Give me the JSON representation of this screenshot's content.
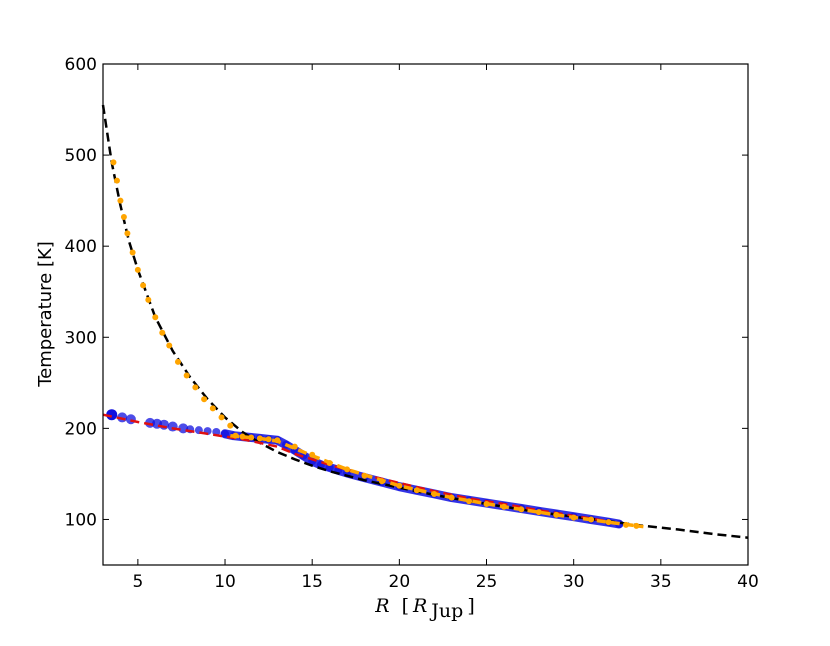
{
  "chart_data": {
    "type": "scatter",
    "title": "",
    "xlabel_main": "R",
    "xlabel_unit_base": "R",
    "xlabel_unit_sub": "Jup",
    "ylabel": "Temperature [K]",
    "xlim": [
      3,
      40
    ],
    "ylim": [
      50,
      600
    ],
    "xticks": [
      5,
      10,
      15,
      20,
      25,
      30,
      35,
      40
    ],
    "yticks": [
      100,
      200,
      300,
      400,
      500,
      600
    ],
    "grid": false,
    "legend": "none",
    "colors": {
      "blue_points": "#1010e0",
      "orange_points": "#ffa500",
      "red_dashed": "#e01010",
      "black_dashed": "#000000"
    },
    "series": [
      {
        "kind": "points",
        "color": "blue",
        "x": [
          3.5,
          4.1,
          4.6,
          5.7,
          6.1,
          6.5,
          7.0,
          7.6,
          8.0,
          8.5,
          9.0,
          9.5,
          10.0,
          10.5,
          11.0,
          11.5,
          12.0,
          12.5,
          13.0,
          13.5,
          14.0,
          14.5,
          15.0,
          15.5,
          16.0,
          16.5,
          17.0,
          18.0,
          19.0,
          20.0,
          21.0,
          22.0,
          23.0,
          24.0,
          25.0,
          26.0,
          27.0,
          28.0,
          29.0,
          30.0,
          31.0,
          32.0,
          32.6
        ],
        "y": [
          215,
          212,
          210,
          206,
          205,
          204,
          202,
          200,
          199,
          198,
          197,
          196,
          194,
          192,
          191,
          190,
          189,
          188,
          187,
          182,
          176,
          170,
          164,
          160,
          157,
          154,
          151,
          146,
          141,
          136,
          132,
          128,
          124,
          121,
          118,
          115,
          112,
          109,
          106,
          103,
          100,
          97,
          95
        ]
      },
      {
        "kind": "points",
        "color": "orange",
        "x": [
          3.6,
          3.8,
          4.0,
          4.2,
          4.4,
          4.7,
          5.0,
          5.3,
          5.6,
          6.0,
          6.4,
          6.8,
          7.3,
          7.8,
          8.3,
          8.8,
          9.3,
          9.8,
          10.3,
          10.6,
          11.0,
          11.5,
          12.0,
          12.5,
          13.0,
          14.0,
          15.0,
          16.0,
          17.0,
          18.0,
          19.0,
          20.0,
          21.0,
          22.0,
          23.0,
          24.0,
          25.0,
          26.0,
          27.0,
          28.0,
          29.0,
          30.0,
          31.0,
          32.0,
          33.0,
          33.6
        ],
        "y": [
          492,
          472,
          450,
          432,
          414,
          393,
          374,
          357,
          341,
          322,
          305,
          291,
          273,
          258,
          245,
          232,
          222,
          212,
          203,
          192,
          191,
          190,
          189,
          188,
          187,
          180,
          171,
          162,
          155,
          148,
          142,
          137,
          132,
          128,
          124,
          120,
          117,
          114,
          111,
          108,
          105,
          102,
          100,
          97,
          94,
          93
        ]
      },
      {
        "kind": "dashed_curve",
        "color": "black",
        "x": [
          3.0,
          3.5,
          4.0,
          4.5,
          5.0,
          6.0,
          7.0,
          8.0,
          9.0,
          10.0,
          11.0,
          12.0,
          13.0,
          14.0,
          15.0,
          16.0,
          18.0,
          20.0,
          22.0,
          24.0,
          26.0,
          28.0,
          30.0,
          32.0,
          34.0,
          36.0,
          38.0,
          40.0
        ],
        "y": [
          555,
          492,
          445,
          405,
          374,
          322,
          285,
          256,
          232,
          212,
          196,
          184,
          174,
          166,
          159,
          153,
          143,
          135,
          127,
          120,
          114,
          108,
          103,
          98,
          93,
          89,
          84,
          80
        ]
      },
      {
        "kind": "dashed_curve",
        "color": "red",
        "x": [
          3.0,
          5.0,
          7.0,
          9.0,
          11.0,
          13.0,
          14.0,
          15.0,
          16.0,
          18.0,
          20.0,
          22.0,
          24.0,
          26.0,
          28.0,
          30.0,
          32.0
        ],
        "y": [
          215,
          207,
          200,
          194,
          188,
          180,
          172,
          166,
          160,
          149,
          140,
          131,
          123,
          117,
          110,
          104,
          98
        ]
      },
      {
        "kind": "dashed_curve",
        "color": "orange",
        "x": [
          10.3,
          12.0,
          13.0,
          15.0,
          17.0,
          20.0,
          23.0,
          26.0,
          29.0,
          32.0,
          34.0
        ],
        "y": [
          192,
          189,
          186,
          170,
          155,
          137,
          124,
          114,
          105,
          97,
          92
        ]
      }
    ]
  }
}
